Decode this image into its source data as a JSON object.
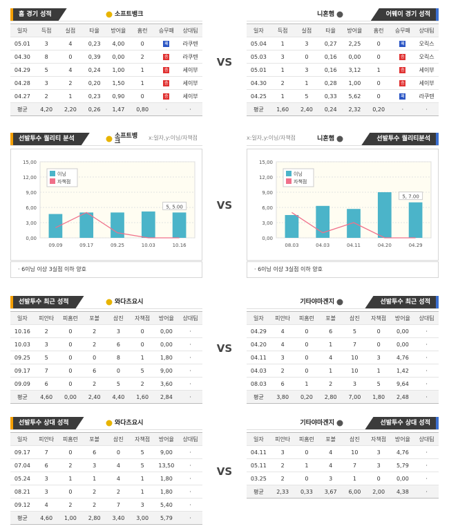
{
  "vs": "VS",
  "home_away": {
    "left": {
      "title": "홈 경기 성적",
      "team": "소프트뱅크",
      "columns": [
        "일자",
        "득점",
        "실점",
        "타율",
        "방어율",
        "홈런",
        "승무패",
        "상대팀"
      ],
      "rows": [
        [
          "05.01",
          "3",
          "4",
          "0,23",
          "4,00",
          "0",
          "패",
          "라쿠텐"
        ],
        [
          "04.30",
          "8",
          "0",
          "0,39",
          "0,00",
          "2",
          "승",
          "라쿠텐"
        ],
        [
          "04.29",
          "5",
          "4",
          "0,24",
          "1,00",
          "1",
          "승",
          "세이부"
        ],
        [
          "04.28",
          "3",
          "2",
          "0,20",
          "1,50",
          "1",
          "승",
          "세이부"
        ],
        [
          "04.27",
          "2",
          "1",
          "0,23",
          "0,90",
          "0",
          "승",
          "세이부"
        ]
      ],
      "average": [
        "평균",
        "4,20",
        "2,20",
        "0,26",
        "1,47",
        "0,80",
        "·",
        "·"
      ]
    },
    "right": {
      "title": "어웨이 경기 성적",
      "team": "니혼햄",
      "columns": [
        "일자",
        "득점",
        "실점",
        "타율",
        "방어율",
        "홈런",
        "승무패",
        "상대팀"
      ],
      "rows": [
        [
          "05.04",
          "1",
          "3",
          "0,27",
          "2,25",
          "0",
          "패",
          "오릭스"
        ],
        [
          "05.03",
          "3",
          "0",
          "0,16",
          "0,00",
          "0",
          "승",
          "오릭스"
        ],
        [
          "05.01",
          "1",
          "3",
          "0,16",
          "3,12",
          "1",
          "승",
          "세이부"
        ],
        [
          "04.30",
          "2",
          "1",
          "0,28",
          "1,00",
          "0",
          "승",
          "세이부"
        ],
        [
          "04.25",
          "1",
          "5",
          "0,33",
          "5,62",
          "0",
          "패",
          "라쿠텐"
        ]
      ],
      "average": [
        "평균",
        "1,60",
        "2,40",
        "0,24",
        "2,32",
        "0,20",
        "·",
        "·"
      ]
    }
  },
  "chart_data": [
    {
      "type": "bar",
      "title": "선발투수 퀄리티 분석",
      "team": "소프트뱅크",
      "axis_note": "x:일자,y:이닝/자책점",
      "categories": [
        "09.09",
        "09.17",
        "09.25",
        "10.03",
        "10.16"
      ],
      "series": [
        {
          "name": "이닝",
          "color": "#4bb4c9",
          "values": [
            4.7,
            5,
            5,
            5.2,
            5
          ]
        },
        {
          "name": "자책점",
          "type": "line",
          "color": "#f0708a",
          "values": [
            2,
            5,
            1,
            0,
            0
          ]
        }
      ],
      "annotation": "5, 5.00",
      "ylim": [
        0,
        15
      ],
      "yticks": [
        {
          "value": 0,
          "label": "0,00"
        },
        {
          "value": 3,
          "label": "3,00"
        },
        {
          "value": 6,
          "label": "6,00"
        },
        {
          "value": 9,
          "label": "9,00"
        },
        {
          "value": 12,
          "label": "12,00"
        },
        {
          "value": 15,
          "label": "15,00"
        }
      ],
      "grid": true,
      "note": "· 6이닝 이상 3실점 이하 양호"
    },
    {
      "type": "bar",
      "title": "선발투수 퀄리티분석",
      "team": "니혼햄",
      "axis_note": "x:일자,y:이닝/자책점",
      "categories": [
        "08.03",
        "04.03",
        "04.11",
        "04.20",
        "04.29"
      ],
      "series": [
        {
          "name": "이닝",
          "color": "#4bb4c9",
          "values": [
            4.5,
            6.3,
            5.7,
            9,
            7
          ]
        },
        {
          "name": "자책점",
          "type": "line",
          "color": "#f0708a",
          "values": [
            5,
            1,
            3,
            0,
            0
          ]
        }
      ],
      "annotation": "5, 7.00",
      "ylim": [
        0,
        15
      ],
      "yticks": [
        {
          "value": 0,
          "label": "0,00"
        },
        {
          "value": 3,
          "label": "3,00"
        },
        {
          "value": 6,
          "label": "6,00"
        },
        {
          "value": 9,
          "label": "9,00"
        },
        {
          "value": 12,
          "label": "12,00"
        },
        {
          "value": 15,
          "label": "15,00"
        }
      ],
      "grid": true,
      "note": "· 6이닝 이상 3실점 이하 양호"
    }
  ],
  "recent": {
    "left": {
      "title": "선발투수 최근 성적",
      "team": "와다츠요시",
      "columns": [
        "일자",
        "피안타",
        "피홈런",
        "포볼",
        "삼진",
        "자책점",
        "방어율",
        "상대팀"
      ],
      "rows": [
        [
          "10.16",
          "2",
          "0",
          "2",
          "3",
          "0",
          "0,00",
          "·"
        ],
        [
          "10.03",
          "3",
          "0",
          "2",
          "6",
          "0",
          "0,00",
          "·"
        ],
        [
          "09.25",
          "5",
          "0",
          "0",
          "8",
          "1",
          "1,80",
          "·"
        ],
        [
          "09.17",
          "7",
          "0",
          "6",
          "0",
          "5",
          "9,00",
          "·"
        ],
        [
          "09.09",
          "6",
          "0",
          "2",
          "5",
          "2",
          "3,60",
          "·"
        ]
      ],
      "average": [
        "평균",
        "4,60",
        "0,00",
        "2,40",
        "4,40",
        "1,60",
        "2,84",
        "·"
      ]
    },
    "right": {
      "title": "선발투수 최근 성적",
      "team": "기타야마겐지",
      "columns": [
        "일자",
        "피안타",
        "피홈런",
        "포볼",
        "삼진",
        "자책점",
        "방어율",
        "상대팀"
      ],
      "rows": [
        [
          "04.29",
          "4",
          "0",
          "6",
          "5",
          "0",
          "0,00",
          "·"
        ],
        [
          "04.20",
          "4",
          "0",
          "1",
          "7",
          "0",
          "0,00",
          "·"
        ],
        [
          "04.11",
          "3",
          "0",
          "4",
          "10",
          "3",
          "4,76",
          "·"
        ],
        [
          "04.03",
          "2",
          "0",
          "1",
          "10",
          "1",
          "1,42",
          "·"
        ],
        [
          "08.03",
          "6",
          "1",
          "2",
          "3",
          "5",
          "9,64",
          "·"
        ]
      ],
      "average": [
        "평균",
        "3,80",
        "0,20",
        "2,80",
        "7,00",
        "1,80",
        "2,48",
        "·"
      ]
    }
  },
  "versus": {
    "left": {
      "title": "선발투수 상대 성적",
      "team": "와다츠요시",
      "columns": [
        "일자",
        "피안타",
        "피홈런",
        "포볼",
        "삼진",
        "자책점",
        "방어율",
        "상대팀"
      ],
      "rows": [
        [
          "09.17",
          "7",
          "0",
          "6",
          "0",
          "5",
          "9,00",
          "·"
        ],
        [
          "07.04",
          "6",
          "2",
          "3",
          "4",
          "5",
          "13,50",
          "·"
        ],
        [
          "05.24",
          "3",
          "1",
          "1",
          "4",
          "1",
          "1,80",
          "·"
        ],
        [
          "08.21",
          "3",
          "0",
          "2",
          "2",
          "1",
          "1,80",
          "·"
        ],
        [
          "09.12",
          "4",
          "2",
          "2",
          "7",
          "3",
          "5,40",
          "·"
        ]
      ],
      "average": [
        "평균",
        "4,60",
        "1,00",
        "2,80",
        "3,40",
        "3,00",
        "5,79",
        "·"
      ]
    },
    "right": {
      "title": "선발투수 상대 성적",
      "team": "기타야마겐지",
      "columns": [
        "일자",
        "피안타",
        "피홈런",
        "포볼",
        "삼진",
        "자책점",
        "방어율",
        "상대팀"
      ],
      "rows": [
        [
          "04.11",
          "3",
          "0",
          "4",
          "10",
          "3",
          "4,76",
          "·"
        ],
        [
          "05.11",
          "2",
          "1",
          "4",
          "7",
          "3",
          "5,79",
          "·"
        ],
        [
          "03.25",
          "2",
          "0",
          "3",
          "1",
          "0",
          "0,00",
          "·"
        ]
      ],
      "average": [
        "평균",
        "2,33",
        "0,33",
        "3,67",
        "6,00",
        "2,00",
        "4,38",
        "·"
      ]
    }
  }
}
